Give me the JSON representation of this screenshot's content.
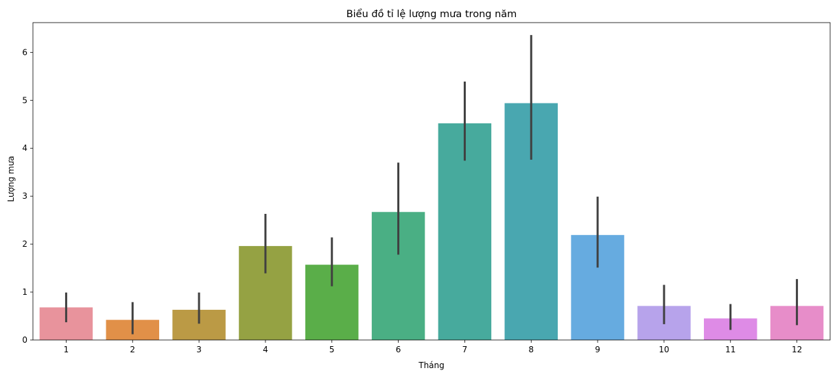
{
  "chart_data": {
    "type": "bar",
    "title": "Biểu đồ tỉ lệ lượng mưa trong năm",
    "xlabel": "Tháng",
    "ylabel": "Lượng mưa",
    "categories": [
      "1",
      "2",
      "3",
      "4",
      "5",
      "6",
      "7",
      "8",
      "9",
      "10",
      "11",
      "12"
    ],
    "values": [
      0.68,
      0.42,
      0.63,
      1.96,
      1.57,
      2.67,
      4.52,
      4.94,
      2.19,
      0.71,
      0.45,
      0.71
    ],
    "error_low": [
      0.37,
      0.12,
      0.34,
      1.39,
      1.12,
      1.78,
      3.74,
      3.76,
      1.51,
      0.33,
      0.21,
      0.31
    ],
    "error_high": [
      0.99,
      0.79,
      0.99,
      2.63,
      2.14,
      3.7,
      5.39,
      6.36,
      2.99,
      1.15,
      0.75,
      1.27
    ],
    "colors": [
      "#e8939c",
      "#e19048",
      "#bb9a45",
      "#95a243",
      "#5aae49",
      "#4aaf84",
      "#47aa9d",
      "#49a7b0",
      "#66abe0",
      "#b7a3eb",
      "#de8be6",
      "#e78dc9"
    ],
    "error_color": "#404040",
    "ylim": [
      0,
      6.62
    ],
    "yticks": [
      0,
      1,
      2,
      3,
      4,
      5,
      6
    ],
    "grid": false,
    "legend": "none"
  }
}
